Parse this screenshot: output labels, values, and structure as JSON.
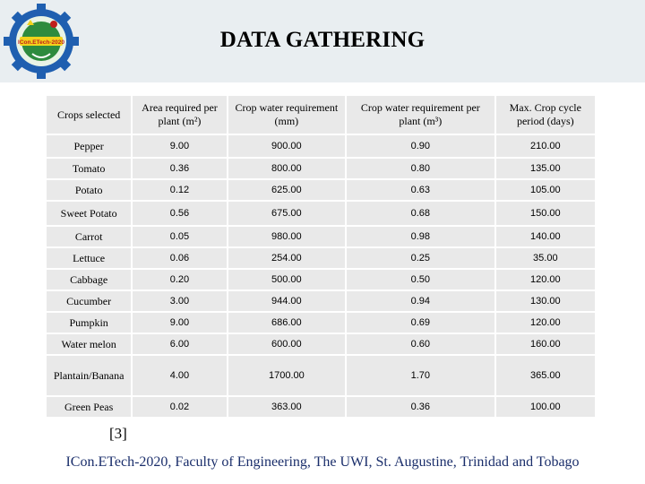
{
  "slide": {
    "title": "DATA GATHERING",
    "logo_text": "ICon.ETech-2020",
    "reference": "[3]",
    "footer": "ICon.ETech-2020, Faculty of Engineering, The UWI, St. Augustine, Trinidad and Tobago"
  },
  "table": {
    "headers": [
      "Crops selected",
      "Area required per plant (m²)",
      "Crop water requirement (mm)",
      "Crop water requirement per plant (m³)",
      "Max. Crop cycle period (days)"
    ],
    "rows": [
      [
        "Pepper",
        "9.00",
        "900.00",
        "0.90",
        "210.00"
      ],
      [
        "Tomato",
        "0.36",
        "800.00",
        "0.80",
        "135.00"
      ],
      [
        "Potato",
        "0.12",
        "625.00",
        "0.63",
        "105.00"
      ],
      [
        "Sweet Potato",
        "0.56",
        "675.00",
        "0.68",
        "150.00"
      ],
      [
        "Carrot",
        "0.05",
        "980.00",
        "0.98",
        "140.00"
      ],
      [
        "Lettuce",
        "0.06",
        "254.00",
        "0.25",
        "35.00"
      ],
      [
        "Cabbage",
        "0.20",
        "500.00",
        "0.50",
        "120.00"
      ],
      [
        "Cucumber",
        "3.00",
        "944.00",
        "0.94",
        "130.00"
      ],
      [
        "Pumpkin",
        "9.00",
        "686.00",
        "0.69",
        "120.00"
      ],
      [
        "Water melon",
        "6.00",
        "600.00",
        "0.60",
        "160.00"
      ],
      [
        "Plantain/Banana",
        "4.00",
        "1700.00",
        "1.70",
        "365.00"
      ],
      [
        "Green Peas",
        "0.02",
        "363.00",
        "0.36",
        "100.00"
      ]
    ]
  },
  "colors": {
    "header_band": "#e9eef1",
    "cell_fill": "#e9e9e9",
    "footer_text": "#1a2e6b",
    "logo_gear": "#1f5fb0",
    "logo_center": "#2e8b3e"
  }
}
